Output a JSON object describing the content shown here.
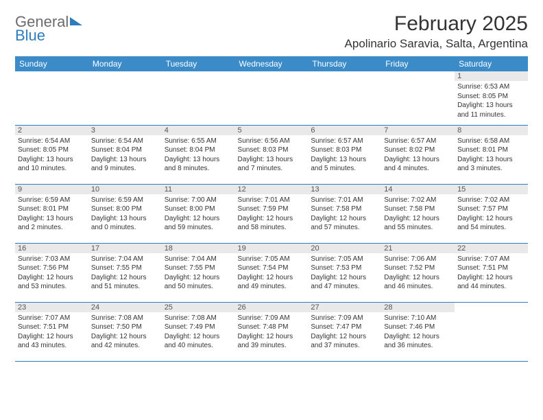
{
  "brand": {
    "line1": "General",
    "line2": "Blue"
  },
  "title": "February 2025",
  "location": "Apolinario Saravia, Salta, Argentina",
  "colors": {
    "header_bg": "#3b8bc9",
    "border": "#2f7bbf",
    "daynum_bg": "#e9e9e9"
  },
  "weekdays": [
    "Sunday",
    "Monday",
    "Tuesday",
    "Wednesday",
    "Thursday",
    "Friday",
    "Saturday"
  ],
  "weeks": [
    [
      null,
      null,
      null,
      null,
      null,
      null,
      {
        "n": "1",
        "sr": "Sunrise: 6:53 AM",
        "ss": "Sunset: 8:05 PM",
        "dl1": "Daylight: 13 hours",
        "dl2": "and 11 minutes."
      }
    ],
    [
      {
        "n": "2",
        "sr": "Sunrise: 6:54 AM",
        "ss": "Sunset: 8:05 PM",
        "dl1": "Daylight: 13 hours",
        "dl2": "and 10 minutes."
      },
      {
        "n": "3",
        "sr": "Sunrise: 6:54 AM",
        "ss": "Sunset: 8:04 PM",
        "dl1": "Daylight: 13 hours",
        "dl2": "and 9 minutes."
      },
      {
        "n": "4",
        "sr": "Sunrise: 6:55 AM",
        "ss": "Sunset: 8:04 PM",
        "dl1": "Daylight: 13 hours",
        "dl2": "and 8 minutes."
      },
      {
        "n": "5",
        "sr": "Sunrise: 6:56 AM",
        "ss": "Sunset: 8:03 PM",
        "dl1": "Daylight: 13 hours",
        "dl2": "and 7 minutes."
      },
      {
        "n": "6",
        "sr": "Sunrise: 6:57 AM",
        "ss": "Sunset: 8:03 PM",
        "dl1": "Daylight: 13 hours",
        "dl2": "and 5 minutes."
      },
      {
        "n": "7",
        "sr": "Sunrise: 6:57 AM",
        "ss": "Sunset: 8:02 PM",
        "dl1": "Daylight: 13 hours",
        "dl2": "and 4 minutes."
      },
      {
        "n": "8",
        "sr": "Sunrise: 6:58 AM",
        "ss": "Sunset: 8:01 PM",
        "dl1": "Daylight: 13 hours",
        "dl2": "and 3 minutes."
      }
    ],
    [
      {
        "n": "9",
        "sr": "Sunrise: 6:59 AM",
        "ss": "Sunset: 8:01 PM",
        "dl1": "Daylight: 13 hours",
        "dl2": "and 2 minutes."
      },
      {
        "n": "10",
        "sr": "Sunrise: 6:59 AM",
        "ss": "Sunset: 8:00 PM",
        "dl1": "Daylight: 13 hours",
        "dl2": "and 0 minutes."
      },
      {
        "n": "11",
        "sr": "Sunrise: 7:00 AM",
        "ss": "Sunset: 8:00 PM",
        "dl1": "Daylight: 12 hours",
        "dl2": "and 59 minutes."
      },
      {
        "n": "12",
        "sr": "Sunrise: 7:01 AM",
        "ss": "Sunset: 7:59 PM",
        "dl1": "Daylight: 12 hours",
        "dl2": "and 58 minutes."
      },
      {
        "n": "13",
        "sr": "Sunrise: 7:01 AM",
        "ss": "Sunset: 7:58 PM",
        "dl1": "Daylight: 12 hours",
        "dl2": "and 57 minutes."
      },
      {
        "n": "14",
        "sr": "Sunrise: 7:02 AM",
        "ss": "Sunset: 7:58 PM",
        "dl1": "Daylight: 12 hours",
        "dl2": "and 55 minutes."
      },
      {
        "n": "15",
        "sr": "Sunrise: 7:02 AM",
        "ss": "Sunset: 7:57 PM",
        "dl1": "Daylight: 12 hours",
        "dl2": "and 54 minutes."
      }
    ],
    [
      {
        "n": "16",
        "sr": "Sunrise: 7:03 AM",
        "ss": "Sunset: 7:56 PM",
        "dl1": "Daylight: 12 hours",
        "dl2": "and 53 minutes."
      },
      {
        "n": "17",
        "sr": "Sunrise: 7:04 AM",
        "ss": "Sunset: 7:55 PM",
        "dl1": "Daylight: 12 hours",
        "dl2": "and 51 minutes."
      },
      {
        "n": "18",
        "sr": "Sunrise: 7:04 AM",
        "ss": "Sunset: 7:55 PM",
        "dl1": "Daylight: 12 hours",
        "dl2": "and 50 minutes."
      },
      {
        "n": "19",
        "sr": "Sunrise: 7:05 AM",
        "ss": "Sunset: 7:54 PM",
        "dl1": "Daylight: 12 hours",
        "dl2": "and 49 minutes."
      },
      {
        "n": "20",
        "sr": "Sunrise: 7:05 AM",
        "ss": "Sunset: 7:53 PM",
        "dl1": "Daylight: 12 hours",
        "dl2": "and 47 minutes."
      },
      {
        "n": "21",
        "sr": "Sunrise: 7:06 AM",
        "ss": "Sunset: 7:52 PM",
        "dl1": "Daylight: 12 hours",
        "dl2": "and 46 minutes."
      },
      {
        "n": "22",
        "sr": "Sunrise: 7:07 AM",
        "ss": "Sunset: 7:51 PM",
        "dl1": "Daylight: 12 hours",
        "dl2": "and 44 minutes."
      }
    ],
    [
      {
        "n": "23",
        "sr": "Sunrise: 7:07 AM",
        "ss": "Sunset: 7:51 PM",
        "dl1": "Daylight: 12 hours",
        "dl2": "and 43 minutes."
      },
      {
        "n": "24",
        "sr": "Sunrise: 7:08 AM",
        "ss": "Sunset: 7:50 PM",
        "dl1": "Daylight: 12 hours",
        "dl2": "and 42 minutes."
      },
      {
        "n": "25",
        "sr": "Sunrise: 7:08 AM",
        "ss": "Sunset: 7:49 PM",
        "dl1": "Daylight: 12 hours",
        "dl2": "and 40 minutes."
      },
      {
        "n": "26",
        "sr": "Sunrise: 7:09 AM",
        "ss": "Sunset: 7:48 PM",
        "dl1": "Daylight: 12 hours",
        "dl2": "and 39 minutes."
      },
      {
        "n": "27",
        "sr": "Sunrise: 7:09 AM",
        "ss": "Sunset: 7:47 PM",
        "dl1": "Daylight: 12 hours",
        "dl2": "and 37 minutes."
      },
      {
        "n": "28",
        "sr": "Sunrise: 7:10 AM",
        "ss": "Sunset: 7:46 PM",
        "dl1": "Daylight: 12 hours",
        "dl2": "and 36 minutes."
      },
      null
    ]
  ]
}
